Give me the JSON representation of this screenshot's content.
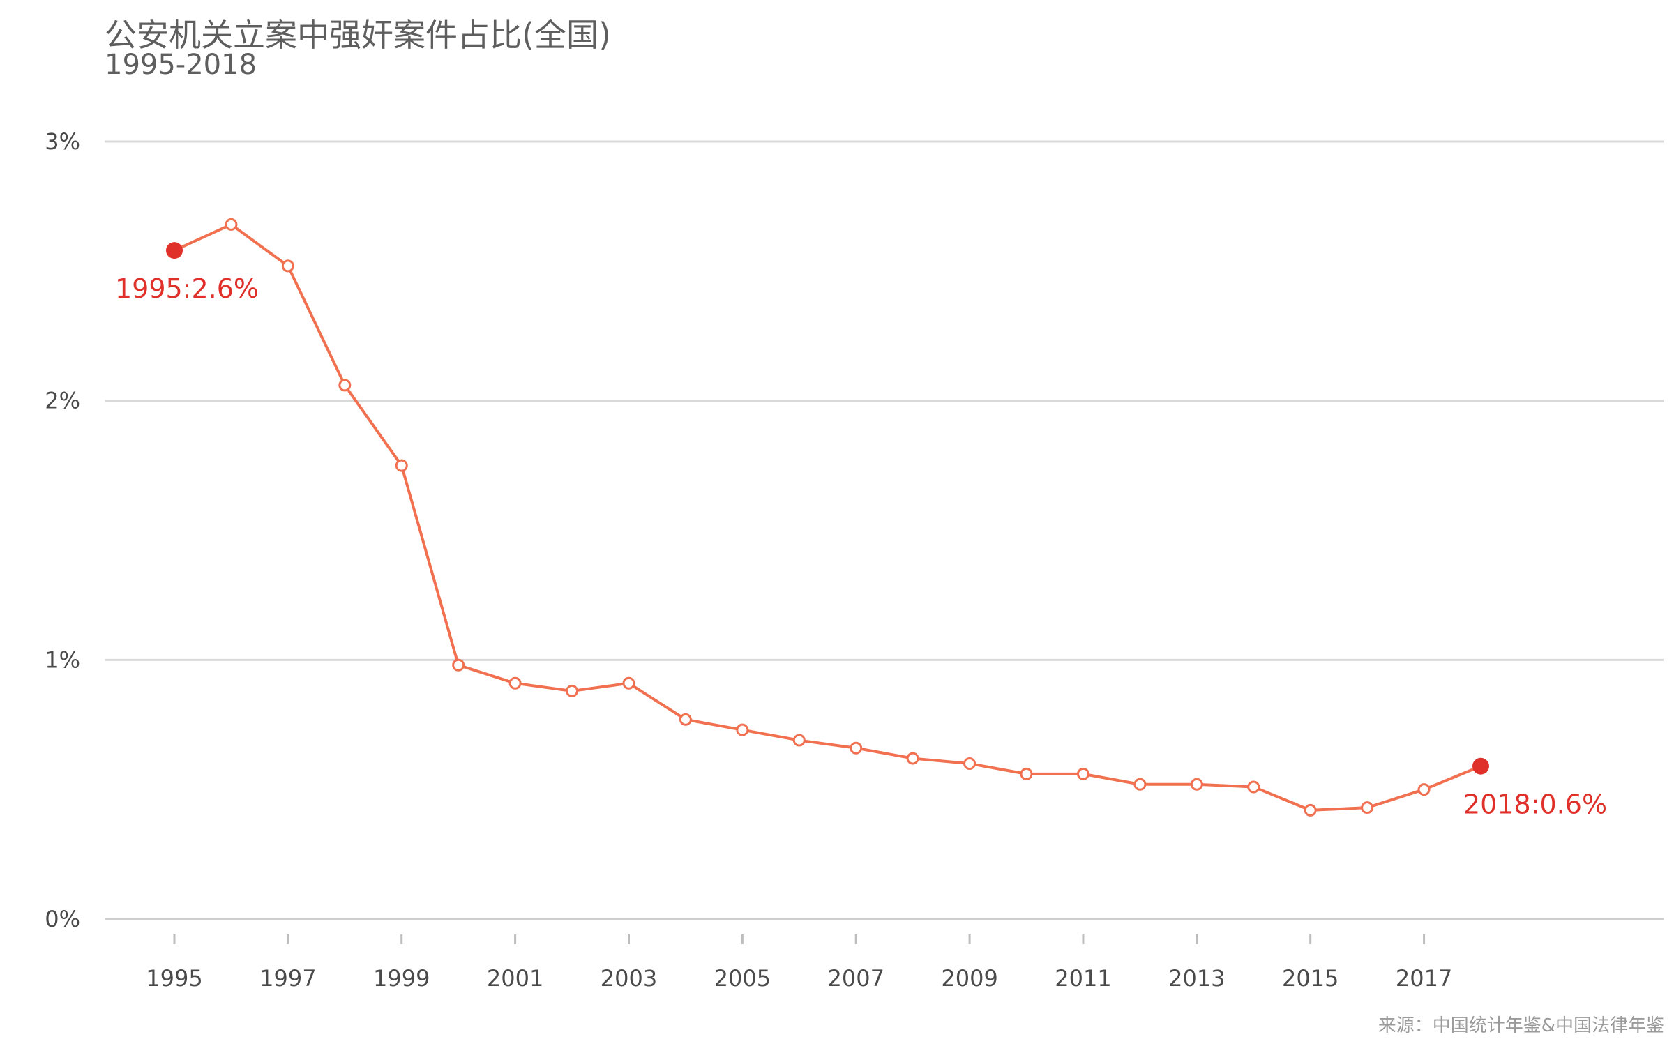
{
  "chart_data": {
    "type": "line",
    "title": "公安机关立案中强奸案件占比(全国)",
    "subtitle": "1995-2018",
    "source": "来源：中国统计年鉴&中国法律年鉴",
    "x": [
      1995,
      1996,
      1997,
      1998,
      1999,
      2000,
      2001,
      2002,
      2003,
      2004,
      2005,
      2006,
      2007,
      2008,
      2009,
      2010,
      2011,
      2012,
      2013,
      2014,
      2015,
      2016,
      2017,
      2018
    ],
    "series": [
      {
        "values": [
          2.58,
          2.68,
          2.52,
          2.06,
          1.75,
          0.98,
          0.91,
          0.88,
          0.91,
          0.77,
          0.73,
          0.69,
          0.66,
          0.62,
          0.6,
          0.56,
          0.56,
          0.52,
          0.52,
          0.51,
          0.42,
          0.43,
          0.5,
          0.59
        ],
        "color": "#f07050"
      }
    ],
    "xticks": [
      "1995",
      "1997",
      "1999",
      "2001",
      "2003",
      "2005",
      "2007",
      "2009",
      "2011",
      "2013",
      "2015",
      "2017"
    ],
    "yticks": [
      "0%",
      "1%",
      "2%",
      "3%"
    ],
    "ylim": [
      0,
      3
    ],
    "grid": "horizontal",
    "annotations": [
      {
        "year": 1995,
        "text": "1995:2.6%",
        "placement": "below",
        "color": "#e0302a"
      },
      {
        "year": 2018,
        "text": "2018:0.6%",
        "placement": "below-right",
        "color": "#e0302a"
      }
    ]
  }
}
